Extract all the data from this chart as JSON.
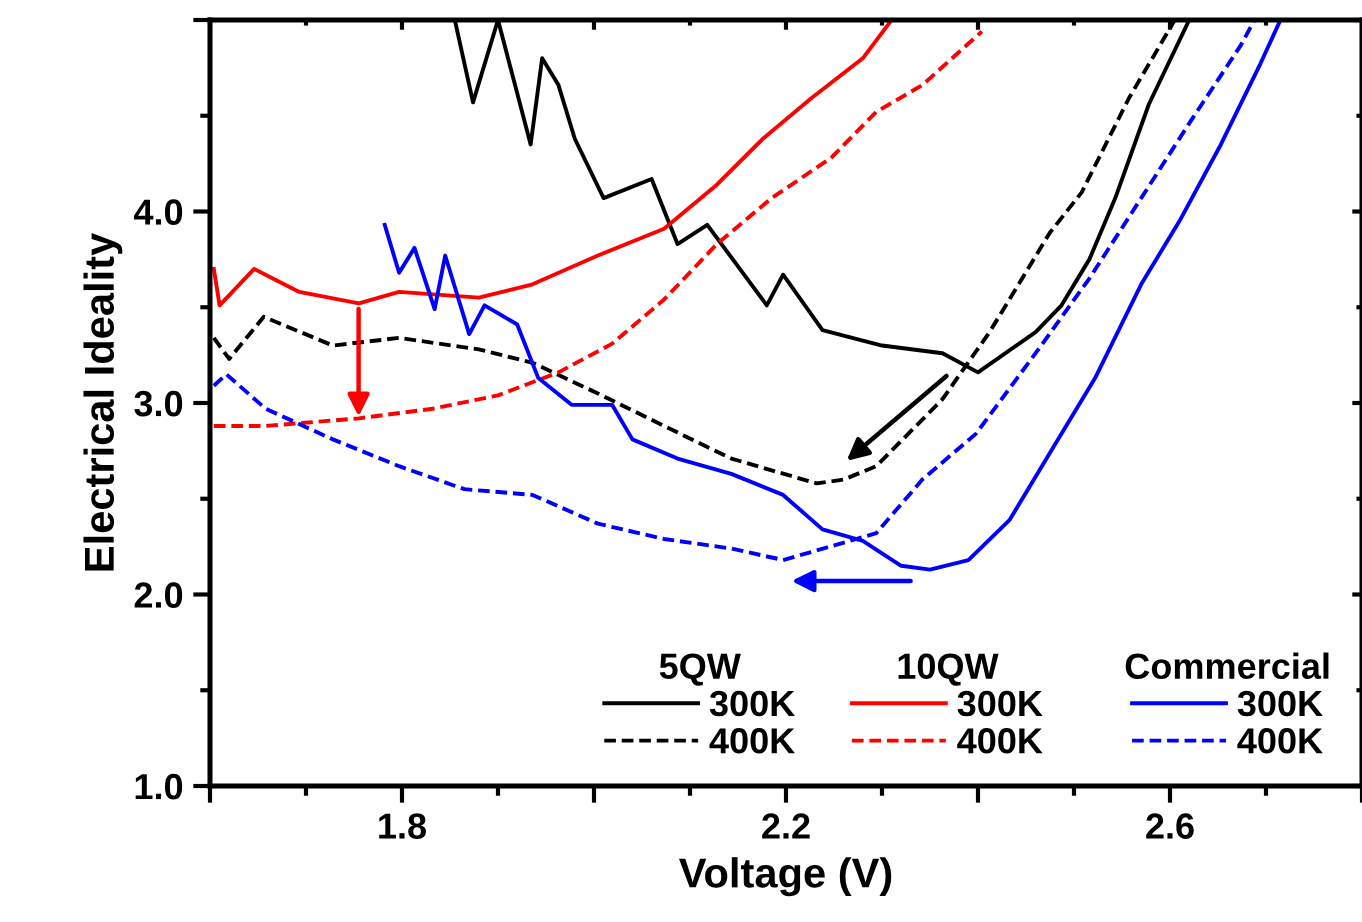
{
  "chart_data": {
    "type": "line",
    "xlabel": "Voltage (V)",
    "ylabel": "Electrical Ideality",
    "xlim": [
      1.6,
      2.8
    ],
    "ylim": [
      1.0,
      5.0
    ],
    "xticks": [
      {
        "value": 1.6,
        "label": null
      },
      1.8,
      {
        "value": 2.0,
        "label": null
      },
      2.2,
      {
        "value": 2.4,
        "label": null
      },
      2.6,
      {
        "value": 2.8,
        "label": null
      }
    ],
    "yticks": [
      {
        "value": 1.0,
        "label": "1.0"
      },
      {
        "value": 2.0,
        "label": "2.0"
      },
      {
        "value": 3.0,
        "label": "3.0"
      },
      {
        "value": 4.0,
        "label": "4.0"
      },
      {
        "value": 5.0,
        "label": null
      }
    ],
    "grid": false,
    "legend": "bottom right",
    "marker": "none",
    "annotations": [
      "5QW",
      "10QW",
      "Commercial"
    ],
    "series": [
      {
        "name": "300K",
        "color": "#000000",
        "line_style": "solid",
        "x": [
          1.855,
          1.874,
          1.9,
          1.934,
          1.946,
          1.963,
          1.98,
          2.01,
          2.06,
          2.087,
          2.118,
          2.18,
          2.197,
          2.238,
          2.3,
          2.363,
          2.4,
          2.46,
          2.487,
          2.516,
          2.543,
          2.578,
          2.62
        ],
        "values": [
          5.0,
          4.57,
          5.0,
          4.35,
          4.8,
          4.66,
          4.38,
          4.07,
          4.17,
          3.83,
          3.93,
          3.51,
          3.67,
          3.38,
          3.3,
          3.26,
          3.16,
          3.37,
          3.51,
          3.75,
          4.07,
          4.56,
          5.0
        ]
      },
      {
        "name": "400K",
        "color": "#000000",
        "line_style": "dashed",
        "x": [
          1.604,
          1.62,
          1.656,
          1.728,
          1.797,
          1.88,
          1.936,
          2.004,
          2.073,
          2.143,
          2.232,
          2.26,
          2.294,
          2.363,
          2.412,
          2.475,
          2.508,
          2.557,
          2.605
        ],
        "values": [
          3.34,
          3.23,
          3.45,
          3.3,
          3.34,
          3.28,
          3.21,
          3.05,
          2.88,
          2.71,
          2.58,
          2.6,
          2.67,
          3.02,
          3.37,
          3.89,
          4.1,
          4.59,
          5.0
        ]
      },
      {
        "name": "300K",
        "color": "#ff0000",
        "line_style": "solid",
        "x": [
          1.604,
          1.61,
          1.646,
          1.693,
          1.755,
          1.797,
          1.88,
          1.936,
          2.004,
          2.073,
          2.128,
          2.176,
          2.226,
          2.28,
          2.31
        ],
        "values": [
          3.7,
          3.51,
          3.7,
          3.58,
          3.52,
          3.58,
          3.55,
          3.62,
          3.77,
          3.91,
          4.14,
          4.38,
          4.59,
          4.8,
          5.0
        ]
      },
      {
        "name": "400K",
        "color": "#ff0000",
        "line_style": "dashed",
        "x": [
          1.604,
          1.658,
          1.755,
          1.832,
          1.9,
          1.963,
          2.019,
          2.073,
          2.128,
          2.185,
          2.247,
          2.294,
          2.342,
          2.404
        ],
        "values": [
          2.88,
          2.88,
          2.92,
          2.97,
          3.04,
          3.16,
          3.31,
          3.54,
          3.83,
          4.07,
          4.28,
          4.52,
          4.66,
          4.94
        ]
      },
      {
        "name": "300K",
        "color": "#0000ff",
        "line_style": "solid",
        "x": [
          1.782,
          1.797,
          1.813,
          1.834,
          1.845,
          1.87,
          1.886,
          1.92,
          1.942,
          1.977,
          2.019,
          2.04,
          2.087,
          2.143,
          2.197,
          2.238,
          2.28,
          2.32,
          2.35,
          2.39,
          2.433,
          2.475,
          2.522,
          2.57,
          2.611,
          2.653,
          2.694,
          2.715
        ],
        "values": [
          3.93,
          3.68,
          3.81,
          3.49,
          3.77,
          3.36,
          3.51,
          3.41,
          3.13,
          2.99,
          2.99,
          2.81,
          2.71,
          2.63,
          2.52,
          2.34,
          2.28,
          2.15,
          2.13,
          2.18,
          2.39,
          2.74,
          3.13,
          3.62,
          3.96,
          4.35,
          4.77,
          5.0
        ]
      },
      {
        "name": "400K",
        "color": "#0000ff",
        "line_style": "dashed",
        "x": [
          1.604,
          1.617,
          1.658,
          1.728,
          1.797,
          1.865,
          1.936,
          2.004,
          2.073,
          2.143,
          2.197,
          2.253,
          2.294,
          2.342,
          2.398,
          2.46,
          2.516,
          2.57,
          2.62,
          2.674,
          2.688
        ],
        "values": [
          3.09,
          3.15,
          2.97,
          2.81,
          2.67,
          2.55,
          2.52,
          2.37,
          2.29,
          2.24,
          2.18,
          2.26,
          2.32,
          2.6,
          2.84,
          3.26,
          3.65,
          4.07,
          4.46,
          4.87,
          5.0
        ]
      }
    ]
  }
}
